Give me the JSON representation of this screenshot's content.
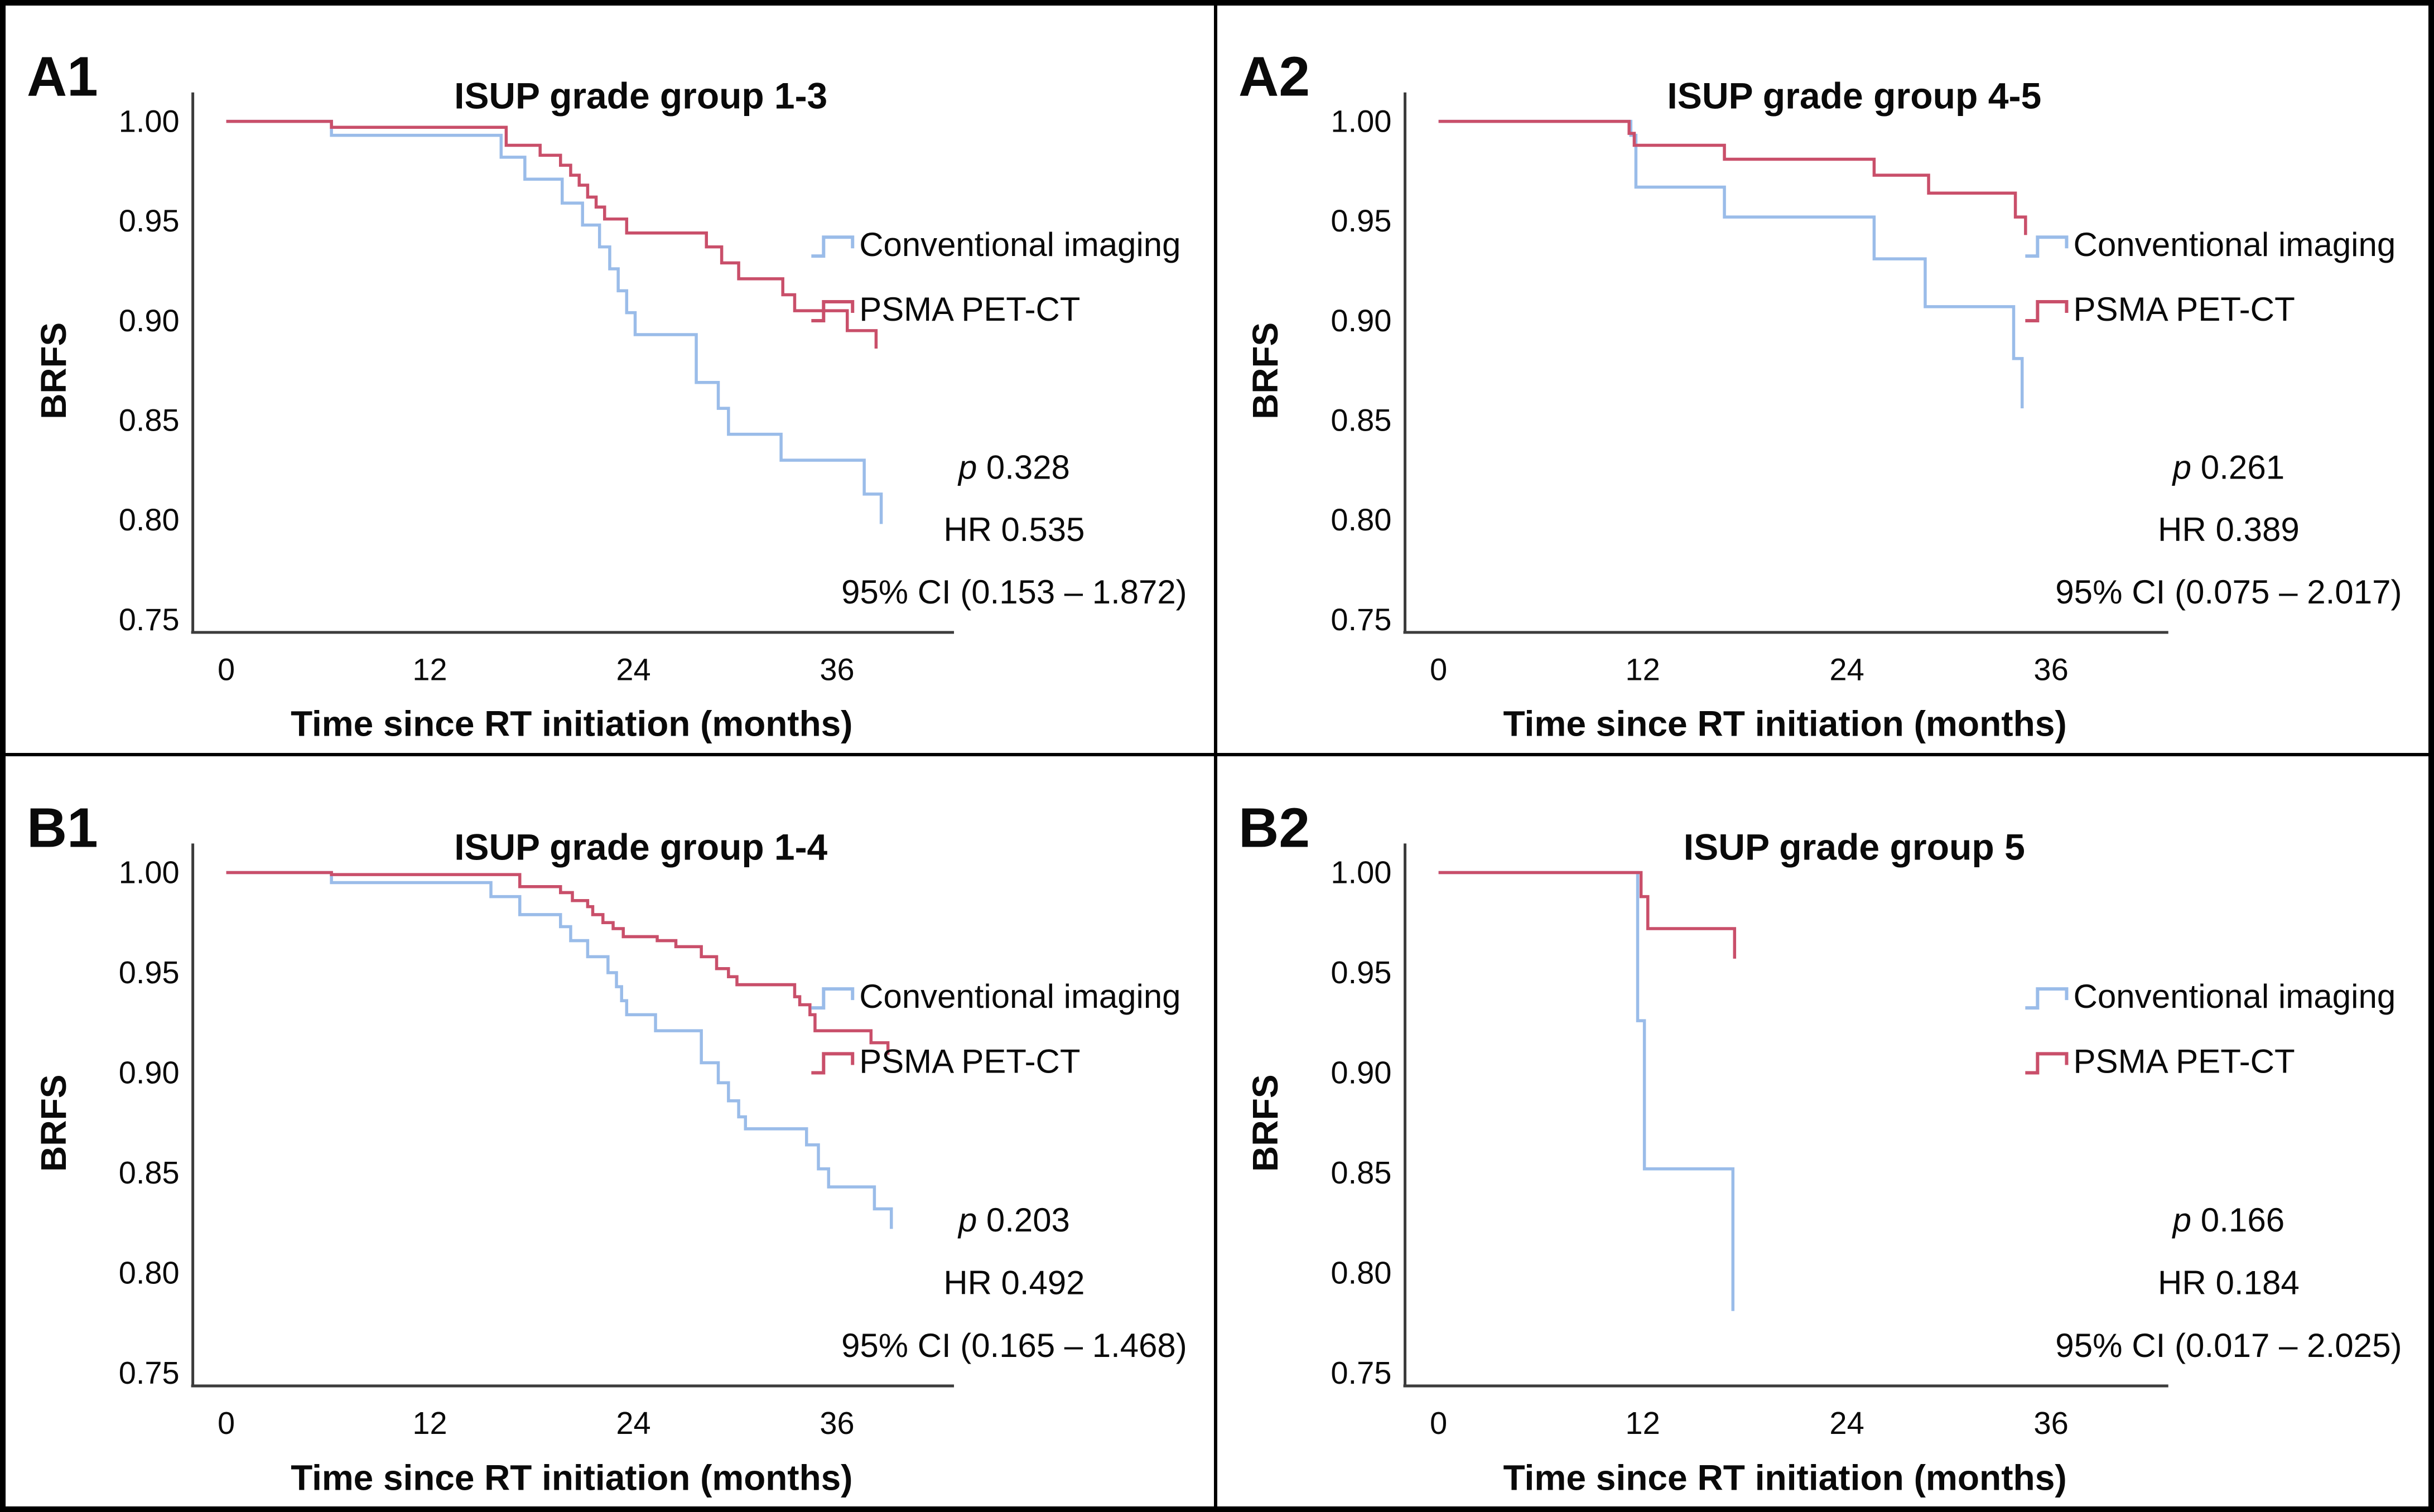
{
  "figure": {
    "ylabel": "BRFS",
    "xlabel": "Time since RT initiation (months)",
    "yticks": [
      "1.00",
      "0.95",
      "0.90",
      "0.85",
      "0.80",
      "0.75"
    ],
    "ytick_values": [
      1.0,
      0.95,
      0.9,
      0.85,
      0.8,
      0.75
    ],
    "xticks": [
      "0",
      "12",
      "24",
      "36"
    ],
    "xtick_values": [
      0,
      12,
      24,
      36
    ],
    "colors": {
      "conventional": "#9ABCE9",
      "psma": "#C94F6A",
      "axis": "#3C3C3C",
      "text": "#0a0a0a"
    },
    "legend": [
      "Conventional imaging",
      "PSMA PET-CT"
    ]
  },
  "chart_data": [
    {
      "type": "line",
      "panel_label": "A1",
      "title": "ISUP grade group 1-3",
      "xlabel": "Time since RT initiation (months)",
      "ylabel": "BRFS",
      "xlim": [
        0,
        42
      ],
      "ylim": [
        0.75,
        1.0
      ],
      "xticks": [
        0,
        12,
        24,
        36
      ],
      "yticks": [
        1.0,
        0.95,
        0.9,
        0.85,
        0.8,
        0.75
      ],
      "grid": false,
      "legend_position": "top-right",
      "annotations": {
        "p_symbol": "p",
        "p_value": " 0.328",
        "hr": "HR 0.535",
        "ci": "95% CI (0.153 – 1.872)"
      },
      "series": [
        {
          "name": "Conventional imaging",
          "color": "#9ABCE9",
          "steps": [
            [
              0,
              1.0
            ],
            [
              6.2,
              0.993
            ],
            [
              16.2,
              0.982
            ],
            [
              17.6,
              0.971
            ],
            [
              19.8,
              0.959
            ],
            [
              21.0,
              0.948
            ],
            [
              22.0,
              0.937
            ],
            [
              22.6,
              0.926
            ],
            [
              23.1,
              0.915
            ],
            [
              23.6,
              0.904
            ],
            [
              24.1,
              0.893
            ],
            [
              27.7,
              0.869
            ],
            [
              29.0,
              0.856
            ],
            [
              29.6,
              0.843
            ],
            [
              32.7,
              0.83
            ],
            [
              37.6,
              0.813
            ],
            [
              38.6,
              0.798
            ]
          ]
        },
        {
          "name": "PSMA PET-CT",
          "color": "#C94F6A",
          "steps": [
            [
              0,
              1.0
            ],
            [
              6.2,
              0.997
            ],
            [
              16.5,
              0.988
            ],
            [
              18.5,
              0.983
            ],
            [
              19.7,
              0.978
            ],
            [
              20.3,
              0.973
            ],
            [
              20.8,
              0.968
            ],
            [
              21.3,
              0.962
            ],
            [
              21.8,
              0.957
            ],
            [
              22.3,
              0.951
            ],
            [
              23.6,
              0.944
            ],
            [
              28.3,
              0.937
            ],
            [
              29.2,
              0.929
            ],
            [
              30.2,
              0.921
            ],
            [
              32.8,
              0.913
            ],
            [
              33.5,
              0.905
            ],
            [
              36.6,
              0.895
            ],
            [
              38.3,
              0.886
            ]
          ]
        }
      ]
    },
    {
      "type": "line",
      "panel_label": "A2",
      "title": "ISUP grade group 4-5",
      "xlabel": "Time since RT initiation (months)",
      "ylabel": "BRFS",
      "xlim": [
        0,
        42
      ],
      "ylim": [
        0.75,
        1.0
      ],
      "xticks": [
        0,
        12,
        24,
        36
      ],
      "yticks": [
        1.0,
        0.95,
        0.9,
        0.85,
        0.8,
        0.75
      ],
      "grid": false,
      "legend_position": "top-right",
      "annotations": {
        "p_symbol": "p",
        "p_value": " 0.261",
        "hr": "HR 0.389",
        "ci": "95% CI (0.075 – 2.017)"
      },
      "series": [
        {
          "name": "Conventional imaging",
          "color": "#9ABCE9",
          "steps": [
            [
              0,
              1.0
            ],
            [
              11.3,
              0.993
            ],
            [
              11.6,
              0.967
            ],
            [
              16.8,
              0.952
            ],
            [
              25.6,
              0.931
            ],
            [
              28.6,
              0.907
            ],
            [
              33.8,
              0.881
            ],
            [
              34.3,
              0.856
            ]
          ]
        },
        {
          "name": "PSMA PET-CT",
          "color": "#C94F6A",
          "steps": [
            [
              0,
              1.0
            ],
            [
              11.2,
              0.994
            ],
            [
              11.5,
              0.988
            ],
            [
              16.8,
              0.981
            ],
            [
              25.6,
              0.973
            ],
            [
              28.8,
              0.964
            ],
            [
              33.9,
              0.952
            ],
            [
              34.5,
              0.943
            ]
          ]
        }
      ]
    },
    {
      "type": "line",
      "panel_label": "B1",
      "title": "ISUP grade group 1-4",
      "xlabel": "Time since RT initiation (months)",
      "ylabel": "BRFS",
      "xlim": [
        0,
        42
      ],
      "ylim": [
        0.75,
        1.0
      ],
      "xticks": [
        0,
        12,
        24,
        36
      ],
      "yticks": [
        1.0,
        0.95,
        0.9,
        0.85,
        0.8,
        0.75
      ],
      "grid": false,
      "legend_position": "top-right",
      "annotations": {
        "p_symbol": "p",
        "p_value": " 0.203",
        "hr": "HR 0.492",
        "ci": "95% CI (0.165 – 1.468)"
      },
      "series": [
        {
          "name": "Conventional imaging",
          "color": "#9ABCE9",
          "steps": [
            [
              0,
              1.0
            ],
            [
              6.2,
              0.995
            ],
            [
              15.6,
              0.988
            ],
            [
              17.3,
              0.979
            ],
            [
              19.7,
              0.973
            ],
            [
              20.3,
              0.966
            ],
            [
              21.3,
              0.958
            ],
            [
              22.5,
              0.95
            ],
            [
              23.0,
              0.943
            ],
            [
              23.3,
              0.936
            ],
            [
              23.6,
              0.929
            ],
            [
              25.3,
              0.921
            ],
            [
              28.0,
              0.905
            ],
            [
              29.0,
              0.895
            ],
            [
              29.6,
              0.886
            ],
            [
              30.2,
              0.878
            ],
            [
              30.6,
              0.872
            ],
            [
              34.2,
              0.864
            ],
            [
              34.9,
              0.852
            ],
            [
              35.5,
              0.843
            ],
            [
              38.2,
              0.832
            ],
            [
              39.2,
              0.822
            ]
          ]
        },
        {
          "name": "PSMA PET-CT",
          "color": "#C94F6A",
          "steps": [
            [
              0,
              1.0
            ],
            [
              6.2,
              0.999
            ],
            [
              17.3,
              0.993
            ],
            [
              19.7,
              0.99
            ],
            [
              20.4,
              0.986
            ],
            [
              21.3,
              0.983
            ],
            [
              21.6,
              0.979
            ],
            [
              22.2,
              0.975
            ],
            [
              22.8,
              0.972
            ],
            [
              23.4,
              0.968
            ],
            [
              25.4,
              0.966
            ],
            [
              26.5,
              0.963
            ],
            [
              28.0,
              0.958
            ],
            [
              28.9,
              0.952
            ],
            [
              29.6,
              0.948
            ],
            [
              30.1,
              0.944
            ],
            [
              33.5,
              0.938
            ],
            [
              33.8,
              0.934
            ],
            [
              34.4,
              0.929
            ],
            [
              34.7,
              0.921
            ],
            [
              38.0,
              0.915
            ],
            [
              39.0,
              0.909
            ]
          ]
        }
      ]
    },
    {
      "type": "line",
      "panel_label": "B2",
      "title": "ISUP grade group 5",
      "xlabel": "Time since RT initiation (months)",
      "ylabel": "BRFS",
      "xlim": [
        0,
        42
      ],
      "ylim": [
        0.75,
        1.0
      ],
      "xticks": [
        0,
        12,
        24,
        36
      ],
      "yticks": [
        1.0,
        0.95,
        0.9,
        0.85,
        0.8,
        0.75
      ],
      "grid": false,
      "legend_position": "top-right",
      "annotations": {
        "p_symbol": "p",
        "p_value": " 0.166",
        "hr": "HR 0.184",
        "ci": "95% CI (0.017 – 2.025)"
      },
      "series": [
        {
          "name": "Conventional imaging",
          "color": "#9ABCE9",
          "steps": [
            [
              0,
              1.0
            ],
            [
              11.7,
              0.926
            ],
            [
              12.1,
              0.852
            ],
            [
              17.3,
              0.781
            ]
          ]
        },
        {
          "name": "PSMA PET-CT",
          "color": "#C94F6A",
          "steps": [
            [
              0,
              1.0
            ],
            [
              11.9,
              0.988
            ],
            [
              12.3,
              0.972
            ],
            [
              17.4,
              0.957
            ]
          ]
        }
      ]
    }
  ]
}
